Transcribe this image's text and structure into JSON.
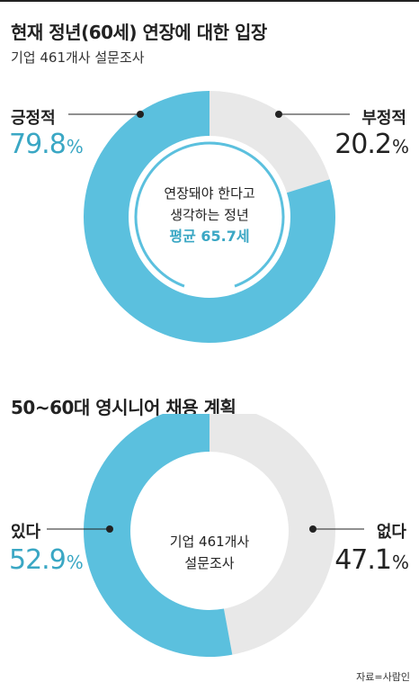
{
  "colors": {
    "primary": "#5bc0de",
    "secondary": "#e8e8e8",
    "accent_text": "#3aa7c4",
    "dark_text": "#222222"
  },
  "chart1": {
    "title": "현재 정년(60세) 연장에 대한 입장",
    "subtitle": "기업 461개사 설문조사",
    "center": {
      "line1": "연장돼야 한다고",
      "line2": "생각하는 정년",
      "highlight": "평균 65.7세"
    }
  },
  "chart2": {
    "title": "50~60대 영시니어 채용 계획",
    "center": {
      "line1": "기업 461개사",
      "line2": "설문조사"
    }
  },
  "source": "자료=사람인",
  "chart_data": [
    {
      "type": "pie",
      "title": "현재 정년(60세) 연장에 대한 입장",
      "subtitle": "기업 461개사 설문조사",
      "categories": [
        "긍정적",
        "부정적"
      ],
      "values": [
        79.8,
        20.2
      ],
      "unit": "%",
      "value_labels": [
        "79.8",
        "20.2"
      ],
      "donut": true
    },
    {
      "type": "pie",
      "title": "50~60대 영시니어 채용 계획",
      "categories": [
        "있다",
        "없다"
      ],
      "values": [
        52.9,
        47.1
      ],
      "unit": "%",
      "value_labels": [
        "52.9",
        "47.1"
      ],
      "donut": true
    }
  ]
}
